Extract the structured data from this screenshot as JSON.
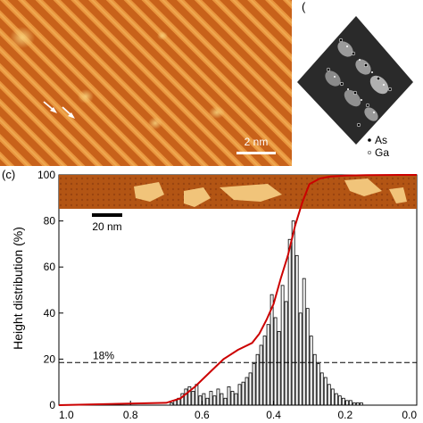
{
  "panel_a": {
    "scale_label": "2 nm"
  },
  "panel_b": {
    "panel_label": "(",
    "legend": [
      "As",
      "Ga"
    ]
  },
  "chart_data": {
    "type": "bar",
    "panel_label": "(c)",
    "ylabel": "Height distribution (%)",
    "xlim": [
      1.0,
      0.0
    ],
    "ylim": [
      0,
      100
    ],
    "xticks": [
      "1.0",
      "0.8",
      "0.6",
      "0.4",
      "0.2",
      "0.0"
    ],
    "yticks": [
      "0",
      "20",
      "40",
      "60",
      "80",
      "100"
    ],
    "bar_color": "#000000",
    "curve_color": "#cc0000",
    "reference_line": {
      "y": 18.5,
      "label": "18%"
    },
    "inset_scale_label": "20 nm",
    "bars": {
      "x": [
        0.685,
        0.675,
        0.665,
        0.655,
        0.645,
        0.635,
        0.625,
        0.615,
        0.605,
        0.595,
        0.585,
        0.575,
        0.565,
        0.555,
        0.545,
        0.535,
        0.525,
        0.515,
        0.505,
        0.495,
        0.485,
        0.475,
        0.465,
        0.455,
        0.445,
        0.435,
        0.425,
        0.415,
        0.405,
        0.395,
        0.385,
        0.375,
        0.365,
        0.355,
        0.345,
        0.335,
        0.325,
        0.315,
        0.305,
        0.295,
        0.285,
        0.275,
        0.265,
        0.255,
        0.245,
        0.235,
        0.225,
        0.215,
        0.205,
        0.195,
        0.185,
        0.175,
        0.165,
        0.155
      ],
      "values": [
        1,
        2,
        3,
        5,
        7,
        8,
        6,
        9,
        4,
        5,
        3,
        6,
        4,
        7,
        5,
        3,
        8,
        6,
        5,
        9,
        10,
        12,
        14,
        18,
        22,
        26,
        30,
        35,
        48,
        38,
        32,
        52,
        45,
        72,
        80,
        65,
        40,
        55,
        42,
        30,
        22,
        18,
        14,
        12,
        9,
        7,
        5,
        4,
        3,
        2,
        2,
        1,
        1,
        1
      ]
    },
    "cumulative_curve": {
      "x": [
        1.0,
        0.7,
        0.66,
        0.62,
        0.58,
        0.54,
        0.5,
        0.46,
        0.44,
        0.42,
        0.4,
        0.38,
        0.36,
        0.34,
        0.32,
        0.3,
        0.27,
        0.24,
        0.2,
        0.14,
        0.05,
        0.0
      ],
      "y": [
        0,
        1,
        3,
        8,
        14,
        20,
        24,
        27,
        31,
        37,
        44,
        55,
        65,
        78,
        88,
        96,
        98.5,
        99.3,
        99.7,
        99.9,
        100,
        100
      ]
    }
  }
}
